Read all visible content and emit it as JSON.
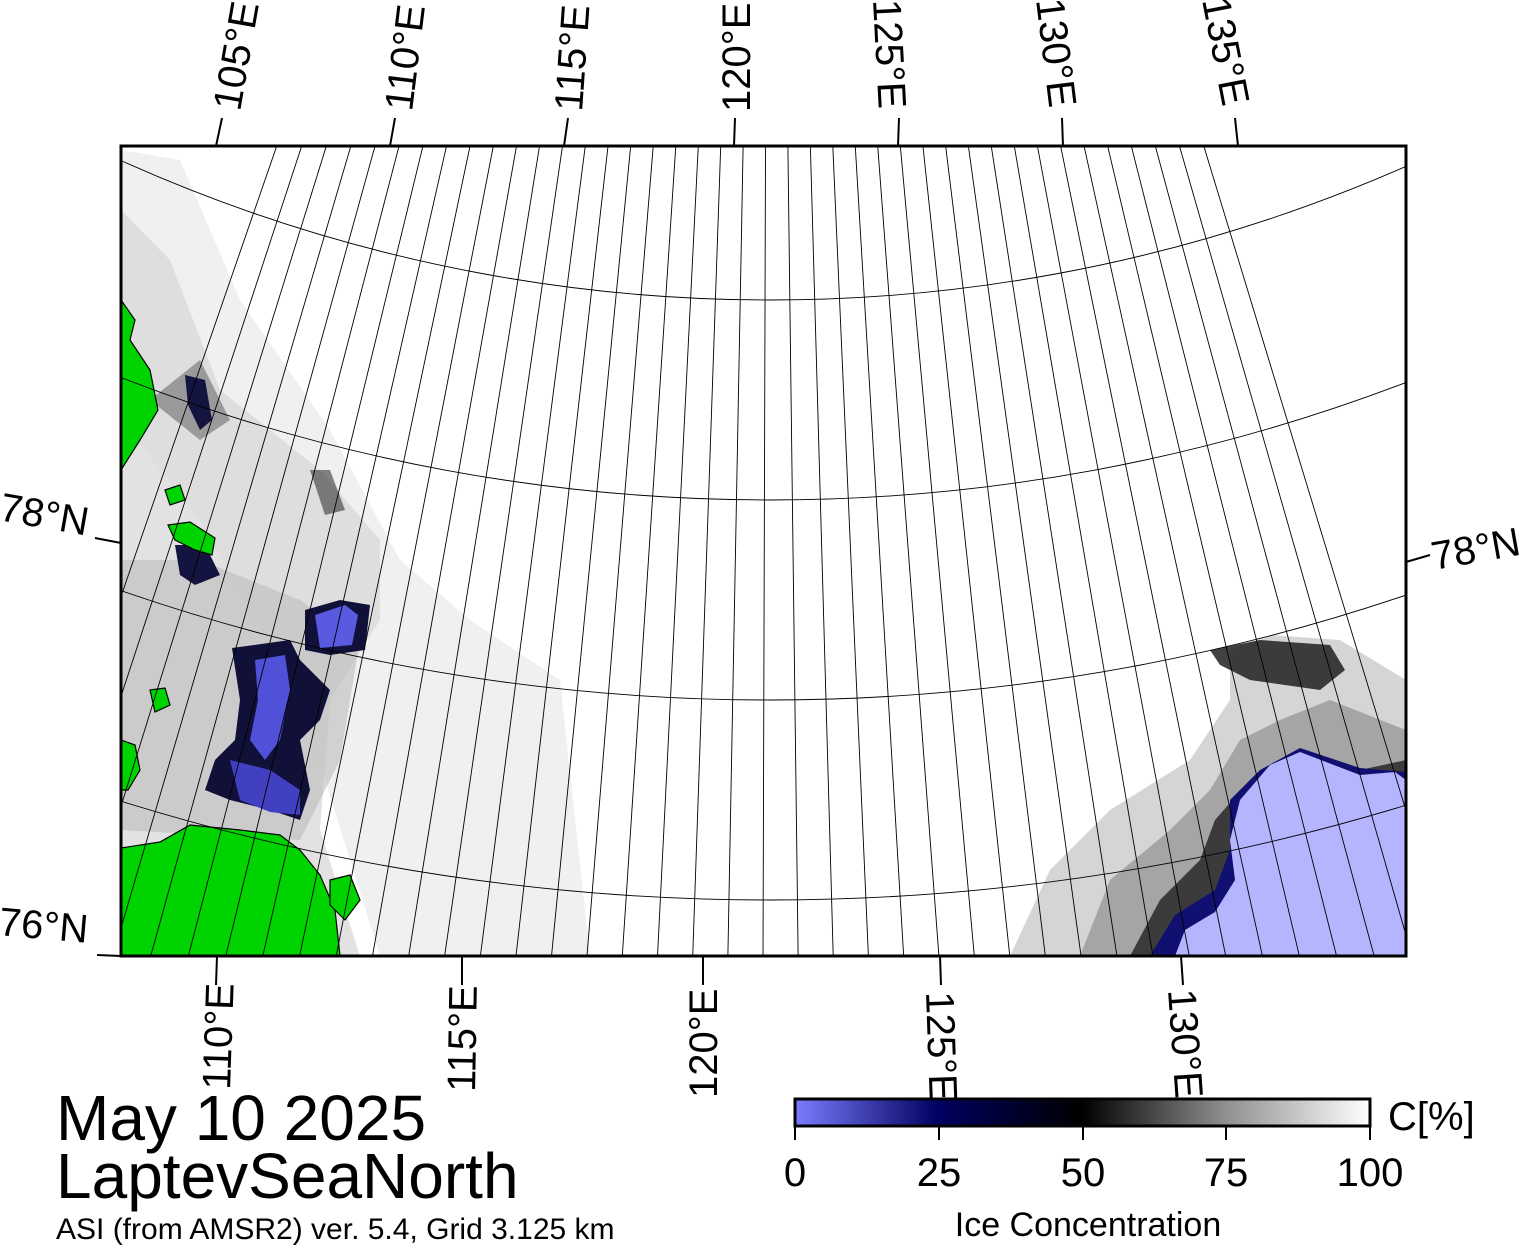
{
  "caption": {
    "date": "May 10 2025",
    "region": "LaptevSeaNorth",
    "product": "ASI (from AMSR2) ver. 5.4,  Grid 3.125 km"
  },
  "map": {
    "top_lon_labels": [
      "105°E",
      "110°E",
      "115°E",
      "120°E",
      "125°E",
      "130°E",
      "135°E"
    ],
    "bottom_lon_labels": [
      "110°E",
      "115°E",
      "120°E",
      "125°E",
      "130°E"
    ],
    "lat_labels": [
      {
        "name": "lat-78-left",
        "text": "78°N"
      },
      {
        "name": "lat-78-right",
        "text": "78°N"
      },
      {
        "name": "lat-76-left",
        "text": "76°N"
      }
    ],
    "colors": {
      "land": "#00d400",
      "open_water": "#b4b4ff",
      "coast": "#000000"
    }
  },
  "colorbar": {
    "title": "Ice Concentration",
    "unit": "C[%]",
    "ticks": [
      "0",
      "25",
      "50",
      "75",
      "100"
    ],
    "stops": [
      {
        "value": 0,
        "color": "#7b7bff"
      },
      {
        "value": 25,
        "color": "#000060"
      },
      {
        "value": 50,
        "color": "#000000"
      },
      {
        "value": 75,
        "color": "#909090"
      },
      {
        "value": 100,
        "color": "#ffffff"
      }
    ]
  }
}
